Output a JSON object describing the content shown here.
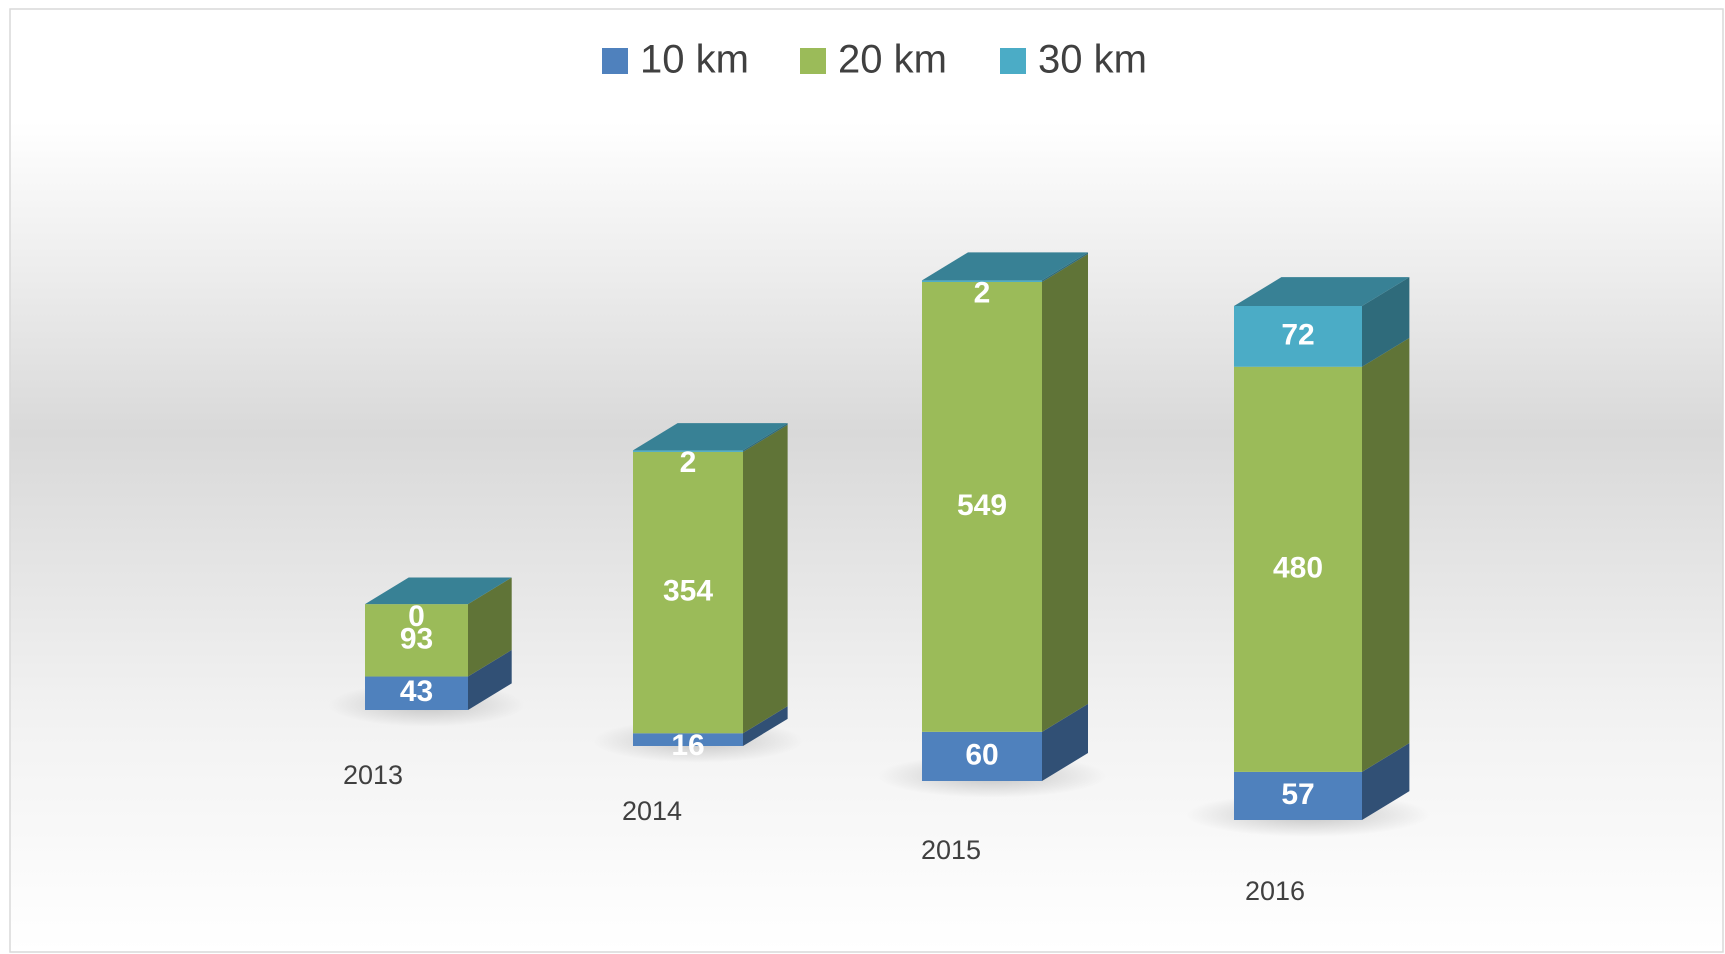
{
  "chart_data": {
    "type": "bar3d_stacked",
    "categories": [
      "2013",
      "2014",
      "2015",
      "2016"
    ],
    "series": [
      {
        "name": "10 km",
        "color": "#4f81bd",
        "values": [
          43,
          16,
          60,
          57
        ]
      },
      {
        "name": "20 km",
        "color": "#9bbb59",
        "values": [
          93,
          354,
          549,
          480
        ]
      },
      {
        "name": "30 km",
        "color": "#4bacc6",
        "values": [
          0,
          2,
          2,
          72
        ]
      }
    ],
    "legend": "top",
    "data_labels": true
  }
}
